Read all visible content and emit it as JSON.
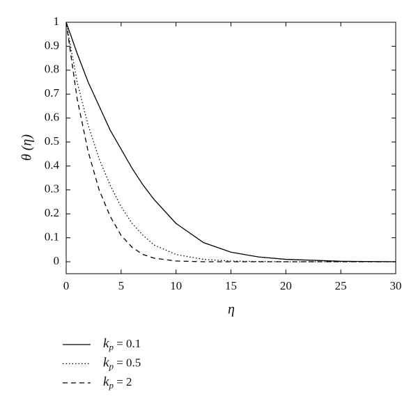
{
  "chart_data": {
    "type": "line",
    "x_label": "η",
    "y_label": "θ (η)",
    "x": [
      0,
      1,
      2,
      3,
      4,
      5,
      6,
      7,
      8,
      10,
      12.5,
      15,
      17.5,
      20,
      25,
      30
    ],
    "series": [
      {
        "name": "kp = 0.1",
        "color": "#000000",
        "style": "solid",
        "values": [
          1,
          0.87,
          0.75,
          0.65,
          0.55,
          0.47,
          0.39,
          0.32,
          0.26,
          0.16,
          0.08,
          0.04,
          0.02,
          0.01,
          0.002,
          0
        ]
      },
      {
        "name": "kp = 0.5",
        "color": "#000000",
        "style": "dotted",
        "values": [
          1,
          0.75,
          0.57,
          0.43,
          0.32,
          0.23,
          0.16,
          0.11,
          0.07,
          0.03,
          0.01,
          0.003,
          0.001,
          0,
          0,
          0
        ]
      },
      {
        "name": "kp = 2",
        "color": "#000000",
        "style": "dashed",
        "values": [
          1,
          0.68,
          0.46,
          0.3,
          0.19,
          0.11,
          0.06,
          0.03,
          0.015,
          0.003,
          0,
          0,
          0,
          0,
          0,
          0
        ]
      }
    ],
    "xlim": [
      0,
      30
    ],
    "xticks": [
      0,
      5,
      10,
      15,
      20,
      25,
      30
    ],
    "ylim": [
      -0.05,
      1
    ],
    "yticks": [
      0,
      0.1,
      0.2,
      0.3,
      0.4,
      0.5,
      0.6,
      0.7,
      0.8,
      0.9,
      1
    ],
    "legend": "below"
  }
}
